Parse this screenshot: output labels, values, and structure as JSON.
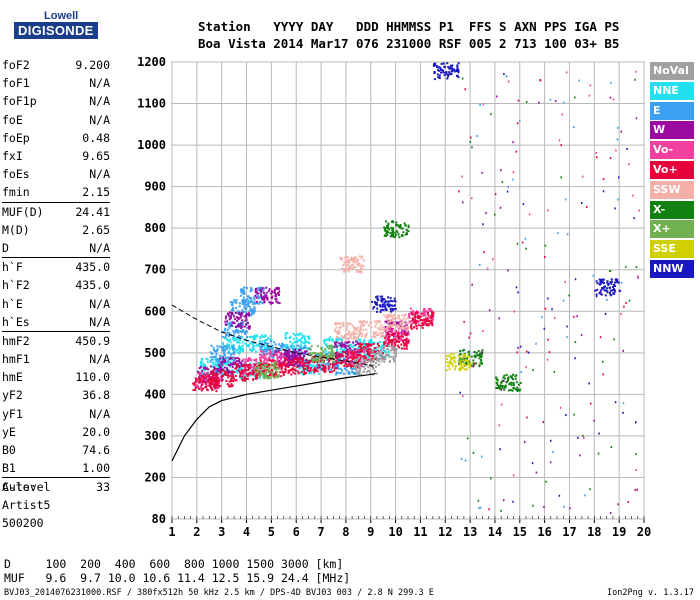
{
  "logo": {
    "line1": "Lowell",
    "line2": "DIGISONDE"
  },
  "header": {
    "line1": "Station   YYYY DAY   DDD HHMMSS P1  FFS S AXN PPS IGA PS",
    "line2": "Boa Vista 2014 Mar17 076 231000 RSF 005 2 713 100 03+ B5"
  },
  "params": [
    {
      "k": "foF2",
      "v": "9.200"
    },
    {
      "k": "foF1",
      "v": "N/A"
    },
    {
      "k": "foF1p",
      "v": "N/A"
    },
    {
      "k": "foE",
      "v": "N/A"
    },
    {
      "k": "foEp",
      "v": "0.48"
    },
    {
      "k": "fxI",
      "v": "9.65"
    },
    {
      "k": "foEs",
      "v": "N/A"
    },
    {
      "k": "fmin",
      "v": "2.15"
    },
    {
      "k": "MUF(D)",
      "v": "24.41",
      "sep": true
    },
    {
      "k": "M(D)",
      "v": "2.65"
    },
    {
      "k": "D",
      "v": "N/A"
    },
    {
      "k": "h`F",
      "v": "435.0",
      "sep": true
    },
    {
      "k": "h`F2",
      "v": "435.0"
    },
    {
      "k": "h`E",
      "v": "N/A"
    },
    {
      "k": "h`Es",
      "v": "N/A"
    },
    {
      "k": "hmF2",
      "v": "450.9",
      "sep": true
    },
    {
      "k": "hmF1",
      "v": "N/A"
    },
    {
      "k": "hmE",
      "v": "110.0"
    },
    {
      "k": "yF2",
      "v": "36.8"
    },
    {
      "k": "yF1",
      "v": "N/A"
    },
    {
      "k": "yE",
      "v": "20.0"
    },
    {
      "k": "B0",
      "v": "74.6"
    },
    {
      "k": "B1",
      "v": "1.00"
    },
    {
      "k": "C-level",
      "v": "33",
      "sep": true
    }
  ],
  "auto": {
    "line1": "Auto:",
    "line2": "Artist5",
    "line3": "500200"
  },
  "legend": [
    {
      "label": "NoVal",
      "color": "#a0a0a0"
    },
    {
      "label": "NNE",
      "color": "#22e0f0"
    },
    {
      "label": "E",
      "color": "#3aa0f0"
    },
    {
      "label": "W",
      "color": "#9a0aa0"
    },
    {
      "label": "Vo-",
      "color": "#f040a0"
    },
    {
      "label": "Vo+",
      "color": "#e8003a"
    },
    {
      "label": "SSW",
      "color": "#f4b0a8"
    },
    {
      "label": "X-",
      "color": "#108010"
    },
    {
      "label": "X+",
      "color": "#70b050"
    },
    {
      "label": "SSE",
      "color": "#d0d000"
    },
    {
      "label": "NNW",
      "color": "#1818c0"
    }
  ],
  "dtable": {
    "line1": "D     100  200  400  600  800 1000 1500 3000 [km]",
    "line2": "MUF   9.6  9.7 10.0 10.6 11.4 12.5 15.9 24.4 [MHz]"
  },
  "footer": "BVJ03_2014076231000.RSF / 380fx512h 50 kHz 2.5 km / DPS-4D BVJ03 003 / 2.8 N 299.3 E",
  "version": "Ion2Png v. 1.3.17",
  "chart_data": {
    "type": "scatter",
    "x_ticks": [
      1,
      2,
      3,
      4,
      5,
      6,
      7,
      8,
      9,
      10,
      11,
      12,
      13,
      14,
      15,
      16,
      17,
      18,
      19,
      20
    ],
    "y_ticks": [
      80,
      200,
      300,
      400,
      500,
      600,
      700,
      800,
      900,
      1000,
      1100,
      1200
    ],
    "xlim": [
      1,
      20
    ],
    "ylim": [
      80,
      1200
    ],
    "grid": true,
    "series": [
      {
        "name": "NNE",
        "color": "#22e0f0",
        "clusters": [
          [
            3.5,
            520
          ],
          [
            4.5,
            525
          ],
          [
            6,
            530
          ],
          [
            7.5,
            520
          ],
          [
            8.5,
            515
          ],
          [
            3.2,
            470
          ],
          [
            4.2,
            460
          ],
          [
            6.5,
            470
          ],
          [
            2.6,
            470
          ],
          [
            9.2,
            510
          ]
        ]
      },
      {
        "name": "E",
        "color": "#3aa0f0",
        "clusters": [
          [
            3.5,
            560
          ],
          [
            4.2,
            640
          ],
          [
            3.0,
            500
          ],
          [
            5,
            510
          ],
          [
            6,
            500
          ],
          [
            7.2,
            480
          ],
          [
            8,
            470
          ],
          [
            3.8,
            610
          ]
        ]
      },
      {
        "name": "W",
        "color": "#9a0aa0",
        "clusters": [
          [
            4.8,
            640
          ],
          [
            3.6,
            580
          ],
          [
            6,
            490
          ],
          [
            8,
            510
          ],
          [
            10,
            560
          ],
          [
            2.5,
            450
          ],
          [
            3.3,
            470
          ],
          [
            5.5,
            490
          ]
        ]
      },
      {
        "name": "Vo-",
        "color": "#f040a0",
        "clusters": [
          [
            8.5,
            490
          ],
          [
            10,
            545
          ],
          [
            11,
            590
          ],
          [
            2.4,
            435
          ],
          [
            5.0,
            490
          ],
          [
            4.3,
            470
          ]
        ]
      },
      {
        "name": "Vo+",
        "color": "#e8003a",
        "clusters": [
          [
            2.3,
            430
          ],
          [
            3,
            440
          ],
          [
            4,
            455
          ],
          [
            5,
            465
          ],
          [
            6,
            470
          ],
          [
            7,
            475
          ],
          [
            8,
            485
          ],
          [
            9,
            505
          ],
          [
            10,
            530
          ],
          [
            11,
            580
          ]
        ]
      },
      {
        "name": "SSW",
        "color": "#f4b0a8",
        "clusters": [
          [
            9,
            560
          ],
          [
            10,
            575
          ],
          [
            8,
            555
          ],
          [
            8.2,
            715
          ]
        ]
      },
      {
        "name": "X-",
        "color": "#108010",
        "clusters": [
          [
            10,
            800
          ],
          [
            13,
            490
          ],
          [
            14.5,
            430
          ]
        ]
      },
      {
        "name": "X+",
        "color": "#70b050",
        "clusters": [
          [
            4.8,
            460
          ],
          [
            7,
            500
          ]
        ]
      },
      {
        "name": "SSE",
        "color": "#d0d000",
        "clusters": [
          [
            12.5,
            480
          ]
        ]
      },
      {
        "name": "NNW",
        "color": "#1818c0",
        "clusters": [
          [
            9.5,
            620
          ],
          [
            12,
            1180
          ],
          [
            18.5,
            660
          ]
        ]
      },
      {
        "name": "NoVal",
        "color": "#a0a0a0",
        "clusters": [
          [
            9.5,
            500
          ],
          [
            8.8,
            470
          ]
        ]
      }
    ],
    "profile_curve": [
      [
        1,
        240
      ],
      [
        1.5,
        300
      ],
      [
        2,
        340
      ],
      [
        2.5,
        370
      ],
      [
        3,
        385
      ],
      [
        4,
        400
      ],
      [
        5,
        410
      ],
      [
        6,
        420
      ],
      [
        7,
        430
      ],
      [
        8,
        440
      ],
      [
        9,
        448
      ],
      [
        9.2,
        450
      ]
    ],
    "dashed_curve": [
      [
        1,
        615
      ],
      [
        2,
        580
      ],
      [
        3,
        550
      ],
      [
        4,
        530
      ],
      [
        5,
        515
      ],
      [
        6,
        500
      ],
      [
        7,
        490
      ],
      [
        8,
        480
      ],
      [
        9,
        470
      ],
      [
        9.2,
        460
      ]
    ]
  }
}
